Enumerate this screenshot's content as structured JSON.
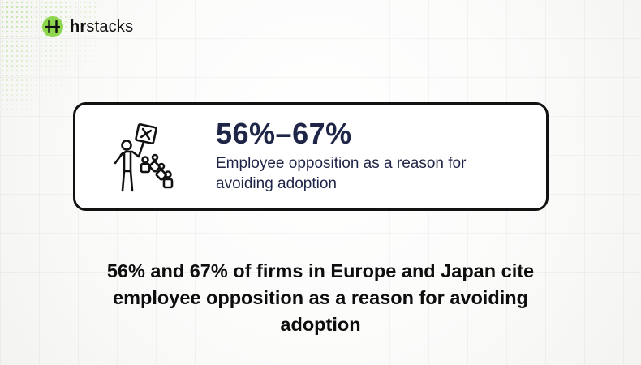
{
  "brand": {
    "name_bold": "hr",
    "name_rest": "stacks",
    "logo_icon": "hr-monogram-icon",
    "accent_color": "#8fd64f"
  },
  "stat_card": {
    "icon": "person-holding-protest-sign-icon",
    "figure": "56%–67%",
    "caption": "Employee opposition as a reason for avoiding adoption"
  },
  "headline": "56% and 67% of firms in Europe and Japan cite employee opposition as a reason for avoiding adoption"
}
